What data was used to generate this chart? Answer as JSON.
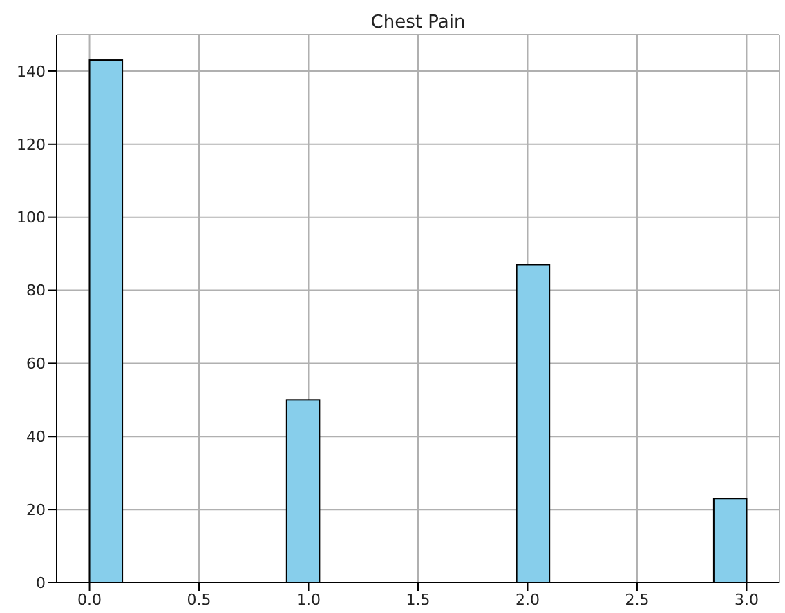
{
  "chart_data": {
    "type": "histogram",
    "title": "Chest Pain",
    "bins": [
      0,
      0.15,
      0.3,
      0.45,
      0.6,
      0.75,
      0.9,
      1.05,
      1.2,
      1.35,
      1.5,
      1.65,
      1.8,
      1.95,
      2.1,
      2.25,
      2.4,
      2.55,
      2.7,
      2.85,
      3.0
    ],
    "values": [
      143,
      0,
      0,
      0,
      0,
      0,
      50,
      0,
      0,
      0,
      0,
      0,
      0,
      87,
      0,
      0,
      0,
      0,
      0,
      23
    ],
    "color": "#87ceeb",
    "xlim": [
      -0.15,
      3.15
    ],
    "xticks": [
      {
        "value": 0,
        "label": "0.0"
      },
      {
        "value": 0.5,
        "label": "0.5"
      },
      {
        "value": 1,
        "label": "1.0"
      },
      {
        "value": 1.5,
        "label": "1.5"
      },
      {
        "value": 2,
        "label": "2.0"
      },
      {
        "value": 2.5,
        "label": "2.5"
      },
      {
        "value": 3,
        "label": "3.0"
      }
    ],
    "ylim": [
      0,
      150
    ],
    "yticks": [
      0,
      20,
      40,
      60,
      80,
      100,
      120,
      140
    ],
    "grid": true
  }
}
